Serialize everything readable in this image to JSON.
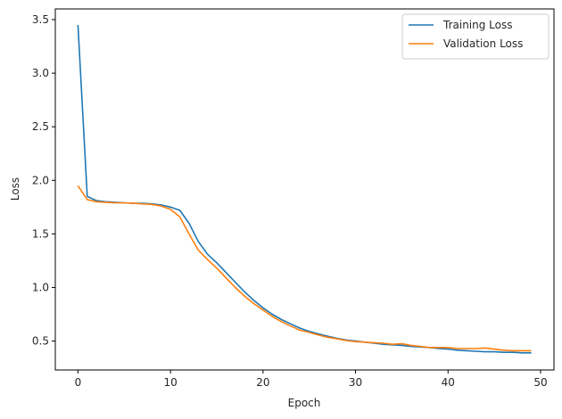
{
  "chart_data": {
    "type": "line",
    "title": "",
    "xlabel": "Epoch",
    "ylabel": "Loss",
    "xlim": [
      -2.45,
      51.45
    ],
    "ylim": [
      0.23,
      3.6
    ],
    "xticks": [
      0,
      10,
      20,
      30,
      40,
      50
    ],
    "yticks": [
      0.5,
      1.0,
      1.5,
      2.0,
      2.5,
      3.0,
      3.5
    ],
    "xtick_labels": [
      "0",
      "10",
      "20",
      "30",
      "40",
      "50"
    ],
    "ytick_labels": [
      "0.5",
      "1.0",
      "1.5",
      "2.0",
      "2.5",
      "3.0",
      "3.5"
    ],
    "grid": false,
    "legend_position": "upper right",
    "x": [
      0,
      1,
      2,
      3,
      4,
      5,
      6,
      7,
      8,
      9,
      10,
      11,
      12,
      13,
      14,
      15,
      16,
      17,
      18,
      19,
      20,
      21,
      22,
      23,
      24,
      25,
      26,
      27,
      28,
      29,
      30,
      31,
      32,
      33,
      34,
      35,
      36,
      37,
      38,
      39,
      40,
      41,
      42,
      43,
      44,
      45,
      46,
      47,
      48,
      49
    ],
    "series": [
      {
        "name": "Training Loss",
        "color": "#1f77b4",
        "values": [
          3.45,
          1.85,
          1.81,
          1.8,
          1.795,
          1.79,
          1.785,
          1.785,
          1.78,
          1.77,
          1.75,
          1.72,
          1.6,
          1.43,
          1.31,
          1.23,
          1.14,
          1.05,
          0.96,
          0.88,
          0.81,
          0.75,
          0.7,
          0.66,
          0.62,
          0.59,
          0.565,
          0.545,
          0.525,
          0.51,
          0.5,
          0.49,
          0.48,
          0.47,
          0.465,
          0.46,
          0.45,
          0.445,
          0.44,
          0.43,
          0.425,
          0.415,
          0.41,
          0.405,
          0.4,
          0.4,
          0.395,
          0.395,
          0.39,
          0.39
        ]
      },
      {
        "name": "Validation Loss",
        "color": "#ff7f0e",
        "values": [
          1.95,
          1.82,
          1.8,
          1.795,
          1.79,
          1.79,
          1.785,
          1.78,
          1.775,
          1.76,
          1.73,
          1.66,
          1.5,
          1.35,
          1.26,
          1.18,
          1.09,
          1.0,
          0.92,
          0.85,
          0.79,
          0.73,
          0.68,
          0.64,
          0.6,
          0.58,
          0.555,
          0.535,
          0.52,
          0.505,
          0.495,
          0.49,
          0.485,
          0.48,
          0.47,
          0.475,
          0.46,
          0.45,
          0.44,
          0.44,
          0.44,
          0.43,
          0.43,
          0.43,
          0.435,
          0.425,
          0.415,
          0.41,
          0.41,
          0.41
        ]
      }
    ]
  },
  "legend": {
    "items": [
      {
        "label": "Training Loss",
        "color": "#1f77b4"
      },
      {
        "label": "Validation Loss",
        "color": "#ff7f0e"
      }
    ]
  }
}
